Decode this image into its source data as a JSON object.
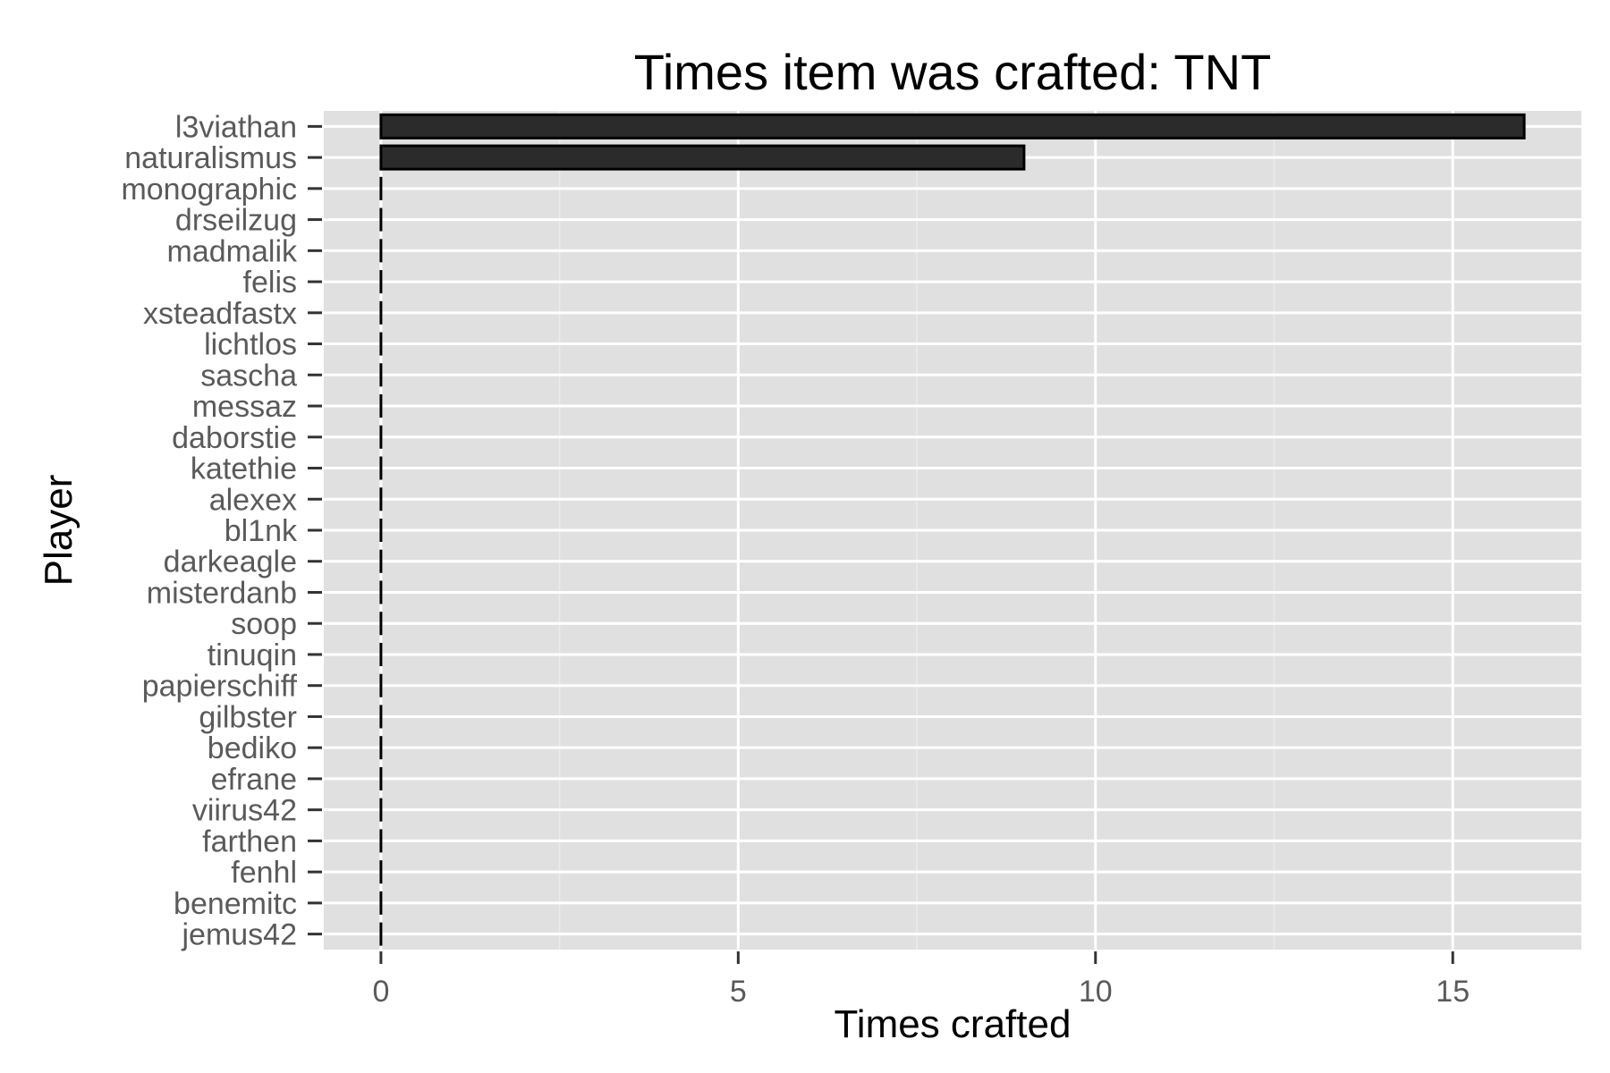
{
  "chart_data": {
    "type": "bar",
    "orientation": "horizontal",
    "title": "Times item was crafted: TNT",
    "xlabel": "Times crafted",
    "ylabel": "Player",
    "xlim": [
      -0.8,
      16.8
    ],
    "xticks": [
      0,
      5,
      10,
      15
    ],
    "grid": true,
    "legend": "none",
    "colors": {
      "panel": "#e0e0e0",
      "grid_major": "#ffffff",
      "grid_minor": "#ebebeb",
      "bar_fill": "#2b2b2b",
      "bar_outline": "#000000",
      "tick_text": "#5a5a5a"
    },
    "categories": [
      "l3viathan",
      "naturalismus",
      "monographic",
      "drseilzug",
      "madmalik",
      "felis",
      "xsteadfastx",
      "lichtlos",
      "sascha",
      "messaz",
      "daborstie",
      "katethie",
      "alexex",
      "bl1nk",
      "darkeagle",
      "misterdanb",
      "soop",
      "tinuqin",
      "papierschiff",
      "gilbster",
      "bediko",
      "efrane",
      "viirus42",
      "farthen",
      "fenhl",
      "benemitc",
      "jemus42"
    ],
    "values": [
      16,
      9,
      0,
      0,
      0,
      0,
      0,
      0,
      0,
      0,
      0,
      0,
      0,
      0,
      0,
      0,
      0,
      0,
      0,
      0,
      0,
      0,
      0,
      0,
      0,
      0,
      0
    ]
  }
}
